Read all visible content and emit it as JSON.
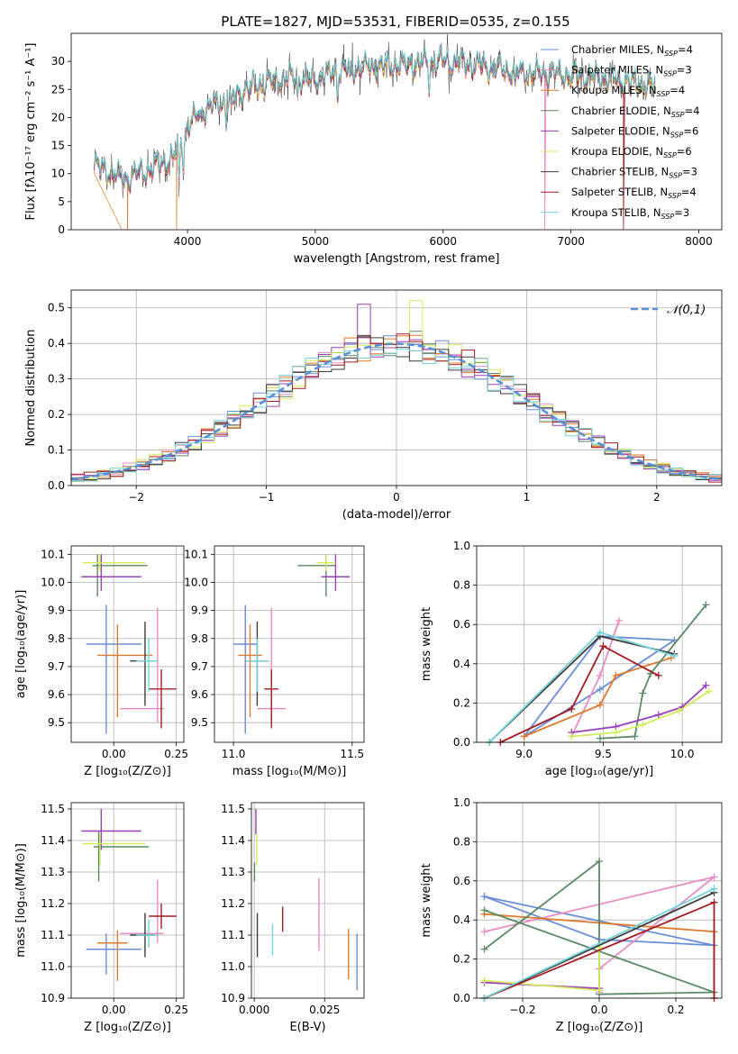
{
  "figure_title": "PLATE=1827, MJD=53531, FIBERID=0535, z=0.155",
  "colors": {
    "Chabrier MILES": "#6a8dd6",
    "Salpeter MILES": "#e88cc3",
    "Kroupa MILES": "#dd7a2c",
    "Chabrier ELODIE": "#5a8a65",
    "Salpeter ELODIE": "#9b3fb7",
    "Kroupa ELODIE": "#d2ec5a",
    "Chabrier STELIB": "#3c3c3c",
    "Salpeter STELIB": "#a11d24",
    "Kroupa STELIB": "#72d4d8",
    "gauss": "#5b8fd6",
    "grid": "#b0b0b0"
  },
  "chart_data": [
    {
      "type": "line",
      "title": "PLATE=1827, MJD=53531, FIBERID=0535, z=0.155",
      "xlabel": "wavelength [Angstrom, rest frame]",
      "ylabel": "Flux [fλ10⁻¹⁷ erg cm⁻² s⁻¹ A⁻¹]",
      "xlim": [
        3090,
        8180
      ],
      "ylim": [
        0,
        35
      ],
      "xticks": [
        4000,
        5000,
        6000,
        7000,
        8000
      ],
      "yticks": [
        0,
        5,
        10,
        15,
        20,
        25,
        30
      ],
      "data_range": [
        3270,
        7660
      ],
      "legend": [
        "Chabrier MILES, N_SSP=4",
        "Salpeter MILES, N_SSP=3",
        "Kroupa MILES, N_SSP=4",
        "Chabrier ELODIE, N_SSP=4",
        "Salpeter ELODIE, N_SSP=6",
        "Kroupa ELODIE, N_SSP=6",
        "Chabrier STELIB, N_SSP=3",
        "Salpeter STELIB, N_SSP=4",
        "Kroupa STELIB, N_SSP=3"
      ],
      "legend_position": "right",
      "continuum": [
        [
          3270,
          11.5
        ],
        [
          3500,
          9
        ],
        [
          3700,
          10.5
        ],
        [
          3900,
          13
        ],
        [
          3990,
          18
        ],
        [
          4100,
          21
        ],
        [
          4300,
          23
        ],
        [
          4500,
          25.5
        ],
        [
          4800,
          27
        ],
        [
          5000,
          26.5
        ],
        [
          5200,
          28.5
        ],
        [
          5500,
          29
        ],
        [
          5800,
          29.5
        ],
        [
          6000,
          30
        ],
        [
          6300,
          29
        ],
        [
          6600,
          28
        ],
        [
          7000,
          27.5
        ],
        [
          7400,
          26.5
        ],
        [
          7660,
          25.5
        ]
      ],
      "absorption_features": [
        [
          3934,
          -7
        ],
        [
          3969,
          -6
        ],
        [
          4102,
          -2
        ],
        [
          4304,
          -4
        ],
        [
          4340,
          -3
        ],
        [
          4861,
          -3
        ],
        [
          5175,
          -4
        ],
        [
          5270,
          -2
        ],
        [
          5890,
          -4
        ],
        [
          6563,
          -3
        ]
      ],
      "cutoffs": [
        [
          3530,
          "Kroupa MILES"
        ],
        [
          3915,
          "Kroupa MILES"
        ],
        [
          6795,
          "Salpeter MILES"
        ],
        [
          7410,
          "Salpeter STELIB"
        ]
      ]
    },
    {
      "type": "histogram",
      "xlabel": "(data-model)/error",
      "ylabel": "Normed distribution",
      "xlim": [
        -2.5,
        2.5
      ],
      "ylim": [
        0,
        0.55
      ],
      "xticks": [
        -2,
        -1,
        0,
        1,
        2
      ],
      "yticks": [
        0.0,
        0.1,
        0.2,
        0.3,
        0.4,
        0.5
      ],
      "bin_width": 0.1,
      "legend": "𝒩(0,1)",
      "legend_position": "top-right",
      "annotations": {
        "max_bar": 0.52
      }
    },
    {
      "type": "scatter",
      "xlabel": "Z [log₁₀(Z/Z⊙)]",
      "ylabel": "age  [log₁₀(age/yr)]",
      "xlim": [
        -0.17,
        0.28
      ],
      "ylim": [
        9.43,
        10.13
      ],
      "xticks": [
        0.0,
        0.25
      ],
      "yticks": [
        9.5,
        9.6,
        9.7,
        9.8,
        9.9,
        10.0,
        10.1
      ],
      "points": [
        {
          "series": "Chabrier MILES",
          "x": -0.03,
          "y": 9.78,
          "xerr": [
            0.08,
            0.14
          ],
          "yerr": [
            0.32,
            0.14
          ]
        },
        {
          "series": "Salpeter MILES",
          "x": 0.175,
          "y": 9.55,
          "xerr": [
            0.15,
            0.025
          ],
          "yerr": [
            0.05,
            0.36
          ]
        },
        {
          "series": "Kroupa MILES",
          "x": 0.015,
          "y": 9.74,
          "xerr": [
            0.08,
            0.14
          ],
          "yerr": [
            0.22,
            0.11
          ]
        },
        {
          "series": "Chabrier ELODIE",
          "x": -0.065,
          "y": 10.06,
          "xerr": [
            0.02,
            0.2
          ],
          "yerr": [
            0.11,
            0.04
          ]
        },
        {
          "series": "Salpeter ELODIE",
          "x": -0.05,
          "y": 10.02,
          "xerr": [
            0.08,
            0.16
          ],
          "yerr": [
            0.05,
            0.08
          ]
        },
        {
          "series": "Kroupa ELODIE",
          "x": -0.055,
          "y": 10.07,
          "xerr": [
            0.07,
            0.18
          ],
          "yerr": [
            0.03,
            0.03
          ]
        },
        {
          "series": "Chabrier STELIB",
          "x": 0.125,
          "y": 9.72,
          "xerr": [
            0.06,
            0.04
          ],
          "yerr": [
            0.16,
            0.14
          ]
        },
        {
          "series": "Salpeter STELIB",
          "x": 0.19,
          "y": 9.62,
          "xerr": [
            0.05,
            0.06
          ],
          "yerr": [
            0.14,
            0.07
          ]
        },
        {
          "series": "Kroupa STELIB",
          "x": 0.14,
          "y": 9.72,
          "xerr": [
            0.05,
            0.04
          ],
          "yerr": [
            0.11,
            0.08
          ]
        }
      ]
    },
    {
      "type": "scatter",
      "xlabel": "mass [log₁₀(M/M⊙)]",
      "ylabel": "",
      "xlim": [
        10.92,
        11.55
      ],
      "ylim": [
        9.43,
        10.13
      ],
      "xticks": [
        11.0,
        11.5
      ],
      "yticks": [
        9.5,
        9.6,
        9.7,
        9.8,
        9.9,
        10.0,
        10.1
      ],
      "points": [
        {
          "series": "Chabrier MILES",
          "x": 11.05,
          "y": 9.78,
          "xerr": [
            0.05,
            0.05
          ],
          "yerr": [
            0.32,
            0.14
          ]
        },
        {
          "series": "Salpeter MILES",
          "x": 11.16,
          "y": 9.55,
          "xerr": [
            0.06,
            0.06
          ],
          "yerr": [
            0.05,
            0.36
          ]
        },
        {
          "series": "Kroupa MILES",
          "x": 11.07,
          "y": 9.74,
          "xerr": [
            0.05,
            0.05
          ],
          "yerr": [
            0.22,
            0.11
          ]
        },
        {
          "series": "Chabrier ELODIE",
          "x": 11.39,
          "y": 10.06,
          "xerr": [
            0.12,
            0.04
          ],
          "yerr": [
            0.11,
            0.04
          ]
        },
        {
          "series": "Salpeter ELODIE",
          "x": 11.43,
          "y": 10.02,
          "xerr": [
            0.06,
            0.06
          ],
          "yerr": [
            0.05,
            0.08
          ]
        },
        {
          "series": "Kroupa ELODIE",
          "x": 11.39,
          "y": 10.07,
          "xerr": [
            0.04,
            0.04
          ],
          "yerr": [
            0.03,
            0.03
          ]
        },
        {
          "series": "Chabrier STELIB",
          "x": 11.1,
          "y": 9.72,
          "xerr": [
            0.05,
            0.05
          ],
          "yerr": [
            0.16,
            0.14
          ]
        },
        {
          "series": "Salpeter STELIB",
          "x": 11.16,
          "y": 9.62,
          "xerr": [
            0.03,
            0.03
          ],
          "yerr": [
            0.14,
            0.07
          ]
        },
        {
          "series": "Kroupa STELIB",
          "x": 11.1,
          "y": 9.72,
          "xerr": [
            0.05,
            0.05
          ],
          "yerr": [
            0.11,
            0.08
          ]
        }
      ]
    },
    {
      "type": "line",
      "xlabel": "age  [log₁₀(age/yr)]",
      "ylabel": "mass weight",
      "xlim": [
        8.7,
        10.25
      ],
      "ylim": [
        0,
        1
      ],
      "xticks": [
        9.0,
        9.5,
        10.0
      ],
      "yticks": [
        0.0,
        0.2,
        0.4,
        0.6,
        0.8,
        1.0
      ],
      "grid": true,
      "series": [
        {
          "series": "Chabrier MILES",
          "x": [
            9.0,
            9.48,
            9.95,
            9.48,
            9.0
          ],
          "y": [
            0.03,
            0.27,
            0.52,
            0.54,
            0.03
          ]
        },
        {
          "series": "Salpeter MILES",
          "x": [
            9.3,
            9.48,
            9.6
          ],
          "y": [
            0.03,
            0.34,
            0.62
          ]
        },
        {
          "series": "Kroupa MILES",
          "x": [
            9.0,
            9.48,
            9.58,
            9.93
          ],
          "y": [
            0.03,
            0.19,
            0.34,
            0.43
          ]
        },
        {
          "series": "Chabrier ELODIE",
          "x": [
            9.48,
            9.7,
            9.75,
            9.8,
            10.15
          ],
          "y": [
            0.02,
            0.03,
            0.25,
            0.35,
            0.7
          ]
        },
        {
          "series": "Salpeter ELODIE",
          "x": [
            9.3,
            9.58,
            9.85,
            10.0,
            10.15
          ],
          "y": [
            0.05,
            0.08,
            0.14,
            0.18,
            0.29
          ]
        },
        {
          "series": "Kroupa ELODIE",
          "x": [
            9.3,
            9.58,
            9.75,
            9.98,
            10.17
          ],
          "y": [
            0.03,
            0.05,
            0.09,
            0.16,
            0.26
          ]
        },
        {
          "series": "Chabrier STELIB",
          "x": [
            8.78,
            9.48,
            9.95
          ],
          "y": [
            0.0,
            0.54,
            0.45
          ]
        },
        {
          "series": "Salpeter STELIB",
          "x": [
            8.85,
            9.3,
            9.5,
            9.85
          ],
          "y": [
            0.0,
            0.17,
            0.49,
            0.34
          ]
        },
        {
          "series": "Kroupa STELIB",
          "x": [
            8.78,
            9.48,
            9.95
          ],
          "y": [
            0.0,
            0.56,
            0.44
          ]
        }
      ]
    },
    {
      "type": "scatter",
      "xlabel": "Z [log₁₀(Z/Z⊙)]",
      "ylabel": "mass [log₁₀(M/M⊙)]",
      "xlim": [
        -0.17,
        0.28
      ],
      "ylim": [
        10.9,
        11.52
      ],
      "xticks": [
        0.0,
        0.25
      ],
      "yticks": [
        10.9,
        11.0,
        11.1,
        11.2,
        11.3,
        11.4,
        11.5
      ],
      "points": [
        {
          "series": "Chabrier MILES",
          "x": -0.03,
          "y": 11.055,
          "xerr": [
            0.08,
            0.14
          ],
          "yerr": [
            0.08,
            0.05
          ]
        },
        {
          "series": "Salpeter MILES",
          "x": 0.175,
          "y": 11.105,
          "xerr": [
            0.15,
            0.025
          ],
          "yerr": [
            0.03,
            0.17
          ]
        },
        {
          "series": "Kroupa MILES",
          "x": 0.015,
          "y": 11.075,
          "xerr": [
            0.08,
            0.04
          ],
          "yerr": [
            0.12,
            0.04
          ]
        },
        {
          "series": "Chabrier ELODIE",
          "x": -0.06,
          "y": 11.38,
          "xerr": [
            0.02,
            0.2
          ],
          "yerr": [
            0.11,
            0.05
          ]
        },
        {
          "series": "Salpeter ELODIE",
          "x": -0.05,
          "y": 11.43,
          "xerr": [
            0.08,
            0.16
          ],
          "yerr": [
            0.06,
            0.07
          ]
        },
        {
          "series": "Kroupa ELODIE",
          "x": -0.055,
          "y": 11.39,
          "xerr": [
            0.07,
            0.18
          ],
          "yerr": [
            0.07,
            0.03
          ]
        },
        {
          "series": "Chabrier STELIB",
          "x": 0.125,
          "y": 11.1,
          "xerr": [
            0.06,
            0.04
          ],
          "yerr": [
            0.07,
            0.07
          ]
        },
        {
          "series": "Salpeter STELIB",
          "x": 0.19,
          "y": 11.16,
          "xerr": [
            0.05,
            0.06
          ],
          "yerr": [
            0.04,
            0.04
          ]
        },
        {
          "series": "Kroupa STELIB",
          "x": 0.14,
          "y": 11.1,
          "xerr": [
            0.05,
            0.04
          ],
          "yerr": [
            0.04,
            0.05
          ]
        }
      ]
    },
    {
      "type": "scatter",
      "xlabel": "E(B-V)",
      "ylabel": "",
      "xlim": [
        -0.001,
        0.039
      ],
      "ylim": [
        10.9,
        11.52
      ],
      "xticks": [
        0.0,
        0.025
      ],
      "yticks": [
        10.9,
        11.0,
        11.1,
        11.2,
        11.3,
        11.4,
        11.5
      ],
      "points": [
        {
          "series": "Chabrier MILES",
          "x": 0.0365,
          "y": 11.015,
          "yerr": [
            0.09,
            0.09
          ]
        },
        {
          "series": "Salpeter MILES",
          "x": 0.023,
          "y": 11.16,
          "yerr": [
            0.11,
            0.12
          ]
        },
        {
          "series": "Kroupa MILES",
          "x": 0.0335,
          "y": 11.04,
          "yerr": [
            0.08,
            0.08
          ]
        },
        {
          "series": "Chabrier ELODIE",
          "x": 0.0001,
          "y": 11.3,
          "yerr": [
            0.03,
            0.03
          ]
        },
        {
          "series": "Salpeter ELODIE",
          "x": 0.0006,
          "y": 11.46,
          "yerr": [
            0.04,
            0.04
          ]
        },
        {
          "series": "Kroupa ELODIE",
          "x": 0.0009,
          "y": 11.37,
          "yerr": [
            0.05,
            0.05
          ]
        },
        {
          "series": "Chabrier STELIB",
          "x": 0.0011,
          "y": 11.1,
          "yerr": [
            0.07,
            0.07
          ]
        },
        {
          "series": "Salpeter STELIB",
          "x": 0.0101,
          "y": 11.15,
          "yerr": [
            0.04,
            0.04
          ]
        },
        {
          "series": "Kroupa STELIB",
          "x": 0.0065,
          "y": 11.085,
          "yerr": [
            0.05,
            0.05
          ]
        }
      ]
    },
    {
      "type": "line",
      "xlabel": "Z [log₁₀(Z/Z⊙)]",
      "ylabel": "mass weight",
      "xlim": [
        -0.32,
        0.32
      ],
      "ylim": [
        0,
        1
      ],
      "xticks": [
        -0.2,
        0.0,
        0.2
      ],
      "yticks": [
        0.0,
        0.2,
        0.4,
        0.6,
        0.8,
        1.0
      ],
      "grid": true,
      "series": [
        {
          "series": "Chabrier MILES",
          "x": [
            -0.3,
            0.3,
            0.0,
            -0.3
          ],
          "y": [
            0.52,
            0.27,
            0.3,
            0.52
          ]
        },
        {
          "series": "Salpeter MILES",
          "x": [
            -0.3,
            0.3,
            0.0,
            0.0
          ],
          "y": [
            0.34,
            0.62,
            0.15,
            0.03
          ]
        },
        {
          "series": "Kroupa MILES",
          "x": [
            -0.3,
            0.3,
            0.3
          ],
          "y": [
            0.43,
            0.34,
            0.03
          ]
        },
        {
          "series": "Chabrier ELODIE",
          "x": [
            -0.3,
            0.0,
            0.0,
            0.3,
            -0.3
          ],
          "y": [
            0.25,
            0.7,
            0.02,
            0.03,
            0.45
          ]
        },
        {
          "series": "Salpeter ELODIE",
          "x": [
            -0.3,
            0.0
          ],
          "y": [
            0.08,
            0.05
          ]
        },
        {
          "series": "Kroupa ELODIE",
          "x": [
            -0.3,
            0.0,
            0.0
          ],
          "y": [
            0.09,
            0.04,
            0.26
          ]
        },
        {
          "series": "Chabrier STELIB",
          "x": [
            -0.3,
            0.3
          ],
          "y": [
            0.0,
            0.54
          ]
        },
        {
          "series": "Salpeter STELIB",
          "x": [
            -0.3,
            0.3,
            0.3
          ],
          "y": [
            0.0,
            0.49,
            0.0
          ]
        },
        {
          "series": "Kroupa STELIB",
          "x": [
            -0.3,
            0.3
          ],
          "y": [
            0.0,
            0.56
          ]
        }
      ]
    }
  ]
}
